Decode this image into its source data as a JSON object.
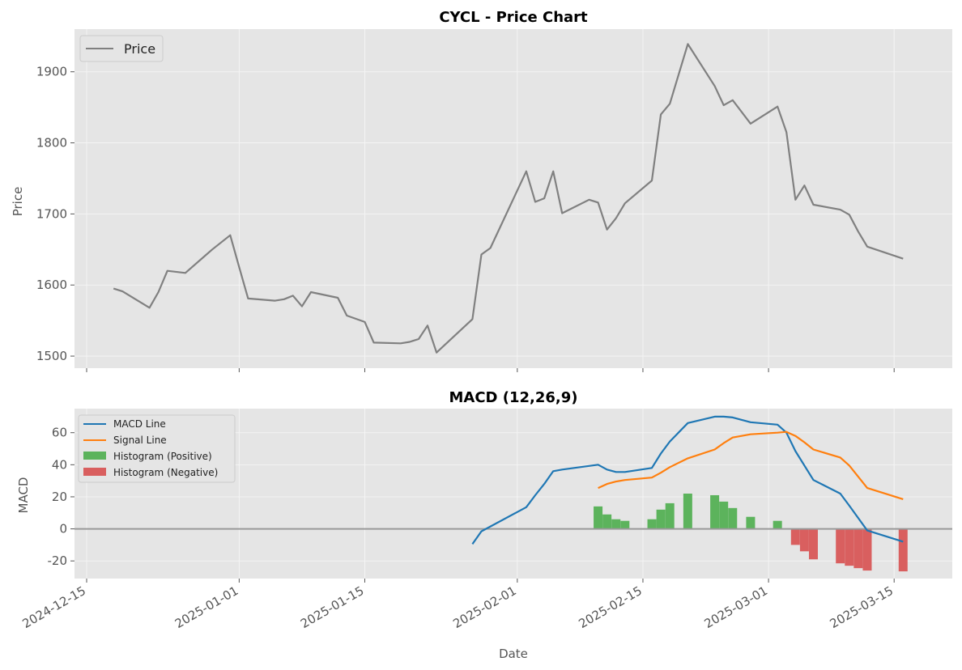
{
  "chart_data": [
    {
      "type": "line",
      "title": "CYCL - Price Chart",
      "xlabel": "",
      "ylabel": "Price",
      "ylim": [
        1483,
        1960
      ],
      "yticks": [
        1500,
        1600,
        1700,
        1800,
        1900
      ],
      "grid": true,
      "legend": "upper-left",
      "series": [
        {
          "name": "Price",
          "color": "#808080",
          "points": [
            [
              "2024-12-18",
              1595
            ],
            [
              "2024-12-19",
              1591
            ],
            [
              "2024-12-22",
              1568
            ],
            [
              "2024-12-23",
              1590
            ],
            [
              "2024-12-24",
              1620
            ],
            [
              "2024-12-26",
              1617
            ],
            [
              "2024-12-29",
              1650
            ],
            [
              "2024-12-31",
              1670
            ],
            [
              "2025-01-01",
              1625
            ],
            [
              "2025-01-02",
              1581
            ],
            [
              "2025-01-05",
              1578
            ],
            [
              "2025-01-06",
              1580
            ],
            [
              "2025-01-07",
              1585
            ],
            [
              "2025-01-08",
              1570
            ],
            [
              "2025-01-09",
              1590
            ],
            [
              "2025-01-12",
              1582
            ],
            [
              "2025-01-13",
              1557
            ],
            [
              "2025-01-15",
              1548
            ],
            [
              "2025-01-16",
              1519
            ],
            [
              "2025-01-19",
              1518
            ],
            [
              "2025-01-20",
              1520
            ],
            [
              "2025-01-21",
              1524
            ],
            [
              "2025-01-22",
              1543
            ],
            [
              "2025-01-23",
              1505
            ],
            [
              "2025-01-27",
              1552
            ],
            [
              "2025-01-28",
              1643
            ],
            [
              "2025-01-29",
              1652
            ],
            [
              "2025-02-02",
              1760
            ],
            [
              "2025-02-03",
              1717
            ],
            [
              "2025-02-04",
              1722
            ],
            [
              "2025-02-05",
              1760
            ],
            [
              "2025-02-06",
              1701
            ],
            [
              "2025-02-09",
              1720
            ],
            [
              "2025-02-10",
              1716
            ],
            [
              "2025-02-11",
              1678
            ],
            [
              "2025-02-12",
              1694
            ],
            [
              "2025-02-13",
              1715
            ],
            [
              "2025-02-16",
              1747
            ],
            [
              "2025-02-17",
              1840
            ],
            [
              "2025-02-18",
              1855
            ],
            [
              "2025-02-20",
              1939
            ],
            [
              "2025-02-23",
              1880
            ],
            [
              "2025-02-24",
              1853
            ],
            [
              "2025-02-25",
              1860
            ],
            [
              "2025-02-27",
              1827
            ],
            [
              "2025-03-02",
              1851
            ],
            [
              "2025-03-03",
              1815
            ],
            [
              "2025-03-04",
              1720
            ],
            [
              "2025-03-05",
              1740
            ],
            [
              "2025-03-06",
              1713
            ],
            [
              "2025-03-09",
              1706
            ],
            [
              "2025-03-10",
              1699
            ],
            [
              "2025-03-11",
              1675
            ],
            [
              "2025-03-12",
              1654
            ],
            [
              "2025-03-16",
              1637
            ]
          ]
        }
      ]
    },
    {
      "type": "line",
      "title": "MACD (12,26,9)",
      "xlabel": "Date",
      "ylabel": "MACD",
      "ylim": [
        -31,
        75
      ],
      "yticks": [
        -20,
        0,
        20,
        40,
        60
      ],
      "xticks": [
        "2024-12-15",
        "2025-01-01",
        "2025-01-15",
        "2025-02-01",
        "2025-02-15",
        "2025-03-01",
        "2025-03-15"
      ],
      "grid": true,
      "legend": "upper-left",
      "zero_line": true,
      "series": [
        {
          "name": "MACD Line",
          "color": "#1f77b4",
          "points": [
            [
              "2025-01-27",
              -9.5
            ],
            [
              "2025-01-28",
              -1.5
            ],
            [
              "2025-02-02",
              13.5
            ],
            [
              "2025-02-03",
              21
            ],
            [
              "2025-02-04",
              28
            ],
            [
              "2025-02-05",
              36
            ],
            [
              "2025-02-06",
              37
            ],
            [
              "2025-02-10",
              40
            ],
            [
              "2025-02-11",
              37
            ],
            [
              "2025-02-12",
              35.5
            ],
            [
              "2025-02-13",
              35.5
            ],
            [
              "2025-02-16",
              38
            ],
            [
              "2025-02-17",
              47
            ],
            [
              "2025-02-18",
              54.5
            ],
            [
              "2025-02-20",
              66
            ],
            [
              "2025-02-23",
              70
            ],
            [
              "2025-02-24",
              70
            ],
            [
              "2025-02-25",
              69.5
            ],
            [
              "2025-02-27",
              66.5
            ],
            [
              "2025-03-02",
              65
            ],
            [
              "2025-03-03",
              60
            ],
            [
              "2025-03-04",
              48.5
            ],
            [
              "2025-03-06",
              30.5
            ],
            [
              "2025-03-09",
              22
            ],
            [
              "2025-03-10",
              14.5
            ],
            [
              "2025-03-12",
              -1
            ],
            [
              "2025-03-16",
              -8
            ]
          ]
        },
        {
          "name": "Signal Line",
          "color": "#ff7f0e",
          "points": [
            [
              "2025-02-10",
              25.5
            ],
            [
              "2025-02-11",
              28
            ],
            [
              "2025-02-12",
              29.5
            ],
            [
              "2025-02-13",
              30.5
            ],
            [
              "2025-02-16",
              32
            ],
            [
              "2025-02-17",
              35
            ],
            [
              "2025-02-18",
              38.5
            ],
            [
              "2025-02-20",
              44
            ],
            [
              "2025-02-23",
              49.5
            ],
            [
              "2025-02-24",
              53.5
            ],
            [
              "2025-02-25",
              57
            ],
            [
              "2025-02-27",
              59
            ],
            [
              "2025-03-02",
              60
            ],
            [
              "2025-03-03",
              60.5
            ],
            [
              "2025-03-04",
              58
            ],
            [
              "2025-03-05",
              54
            ],
            [
              "2025-03-06",
              49.5
            ],
            [
              "2025-03-09",
              44.5
            ],
            [
              "2025-03-10",
              39.5
            ],
            [
              "2025-03-12",
              25.5
            ],
            [
              "2025-03-16",
              18.5
            ]
          ]
        },
        {
          "name": "Histogram (Positive)",
          "color": "#5cb35c",
          "bars": [
            [
              "2025-02-10",
              14
            ],
            [
              "2025-02-11",
              9
            ],
            [
              "2025-02-12",
              6
            ],
            [
              "2025-02-13",
              5
            ],
            [
              "2025-02-16",
              6
            ],
            [
              "2025-02-17",
              12
            ],
            [
              "2025-02-18",
              16
            ],
            [
              "2025-02-20",
              22
            ],
            [
              "2025-02-23",
              21
            ],
            [
              "2025-02-24",
              17
            ],
            [
              "2025-02-25",
              13
            ],
            [
              "2025-02-27",
              7.5
            ],
            [
              "2025-03-02",
              5
            ]
          ]
        },
        {
          "name": "Histogram (Negative)",
          "color": "#d95f5f",
          "bars": [
            [
              "2025-03-04",
              -10
            ],
            [
              "2025-03-05",
              -14
            ],
            [
              "2025-03-06",
              -19
            ],
            [
              "2025-03-09",
              -21.5
            ],
            [
              "2025-03-10",
              -23
            ],
            [
              "2025-03-11",
              -24.5
            ],
            [
              "2025-03-12",
              -26
            ],
            [
              "2025-03-16",
              -26.5
            ]
          ]
        }
      ]
    }
  ]
}
